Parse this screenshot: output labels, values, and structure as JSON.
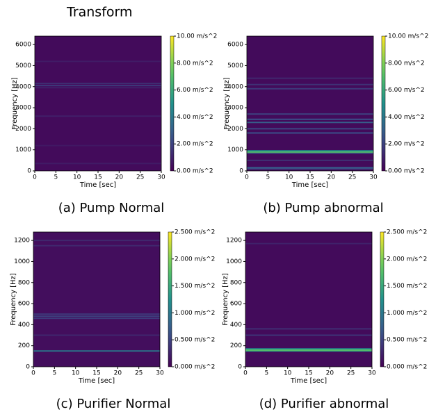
{
  "heading": "Transform",
  "chart_data": [
    {
      "type": "spectrogram",
      "caption": "(a) Pump Normal",
      "xlabel": "Time [sec]",
      "ylabel": "Frequency [Hz]",
      "colormap": "viridis",
      "xlim": [
        0,
        30
      ],
      "xticks": [
        0,
        5,
        10,
        15,
        20,
        25,
        30
      ],
      "ylim": [
        0,
        6400
      ],
      "yticks": [
        0,
        1000,
        2000,
        3000,
        4000,
        5000,
        6000
      ],
      "clim": [
        0,
        10
      ],
      "cticks": [
        {
          "value": 0,
          "label": "0.00 m/s^2"
        },
        {
          "value": 2,
          "label": "2.00 m/s^2"
        },
        {
          "value": 4,
          "label": "4.00 m/s^2"
        },
        {
          "value": 6,
          "label": "6.00 m/s^2"
        },
        {
          "value": 8,
          "label": "8.00 m/s^2"
        },
        {
          "value": 10,
          "label": "10.00 m/s^2"
        }
      ],
      "background_value": 0.3,
      "y": [
        350,
        1200,
        2600,
        3950,
        4050,
        4150,
        5200
      ],
      "values": [
        0.8,
        0.7,
        0.9,
        1.0,
        1.8,
        1.4,
        0.8
      ]
    },
    {
      "type": "spectrogram",
      "caption": "(b) Pump abnormal",
      "xlabel": "Time [sec]",
      "ylabel": "Frequency [Hz]",
      "colormap": "viridis",
      "xlim": [
        0,
        30
      ],
      "xticks": [
        0,
        5,
        10,
        15,
        20,
        25,
        30
      ],
      "ylim": [
        0,
        6400
      ],
      "yticks": [
        0,
        1000,
        2000,
        3000,
        4000,
        5000,
        6000
      ],
      "clim": [
        0,
        10
      ],
      "cticks": [
        {
          "value": 0,
          "label": "0.00 m/s^2"
        },
        {
          "value": 2,
          "label": "2.00 m/s^2"
        },
        {
          "value": 4,
          "label": "4.00 m/s^2"
        },
        {
          "value": 6,
          "label": "6.00 m/s^2"
        },
        {
          "value": 8,
          "label": "8.00 m/s^2"
        },
        {
          "value": 10,
          "label": "10.00 m/s^2"
        }
      ],
      "background_value": 0.3,
      "y": [
        100,
        150,
        500,
        850,
        900,
        950,
        1800,
        2000,
        2300,
        2450,
        2700,
        3900,
        4100,
        4400
      ],
      "values": [
        2,
        3,
        1.5,
        3,
        7.5,
        5,
        2.5,
        2.2,
        3,
        2.5,
        2,
        1.8,
        1.5,
        1.2
      ]
    },
    {
      "type": "spectrogram",
      "caption": "(c) Purifier Normal",
      "xlabel": "Time [sec]",
      "ylabel": "Frequency [Hz]",
      "colormap": "viridis",
      "xlim": [
        0,
        30
      ],
      "xticks": [
        0,
        5,
        10,
        15,
        20,
        25,
        30
      ],
      "ylim": [
        0,
        1280
      ],
      "yticks": [
        0,
        200,
        400,
        600,
        800,
        1000,
        1200
      ],
      "clim": [
        0,
        2.5
      ],
      "cticks": [
        {
          "value": 0,
          "label": "0.000 m/s^2"
        },
        {
          "value": 0.5,
          "label": "0.500 m/s^2"
        },
        {
          "value": 1,
          "label": "1.000 m/s^2"
        },
        {
          "value": 1.5,
          "label": "1.500 m/s^2"
        },
        {
          "value": 2,
          "label": "2.000 m/s^2"
        },
        {
          "value": 2.5,
          "label": "2.500 m/s^2"
        }
      ],
      "background_value": 0.1,
      "y": [
        150,
        300,
        460,
        480,
        500,
        1150,
        1200
      ],
      "values": [
        1.0,
        0.3,
        0.45,
        0.5,
        0.45,
        0.3,
        0.3
      ]
    },
    {
      "type": "spectrogram",
      "caption": "(d) Purifier abnormal",
      "xlabel": "Time [sec]",
      "ylabel": "Frequency [Hz]",
      "colormap": "viridis",
      "xlim": [
        0,
        30
      ],
      "xticks": [
        0,
        5,
        10,
        15,
        20,
        25,
        30
      ],
      "ylim": [
        0,
        1280
      ],
      "yticks": [
        0,
        200,
        400,
        600,
        800,
        1000,
        1200
      ],
      "clim": [
        0,
        2.5
      ],
      "cticks": [
        {
          "value": 0,
          "label": "0.000 m/s^2"
        },
        {
          "value": 0.5,
          "label": "0.500 m/s^2"
        },
        {
          "value": 1,
          "label": "1.000 m/s^2"
        },
        {
          "value": 1.5,
          "label": "1.500 m/s^2"
        },
        {
          "value": 2,
          "label": "2.000 m/s^2"
        },
        {
          "value": 2.5,
          "label": "2.500 m/s^2"
        }
      ],
      "background_value": 0.08,
      "y": [
        150,
        160,
        170,
        300,
        360,
        1170
      ],
      "values": [
        1.4,
        1.9,
        1.2,
        0.4,
        0.35,
        0.25
      ]
    }
  ]
}
